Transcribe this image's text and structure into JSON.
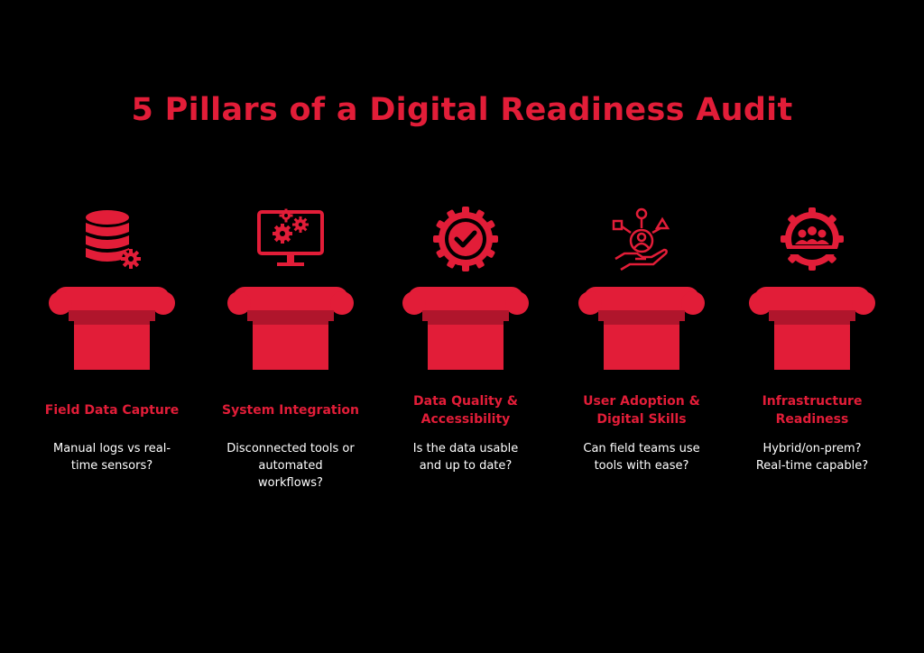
{
  "title": "5 Pillars of a Digital Readiness Audit",
  "accent_color": "#e21d38",
  "pillar_dark_color": "#b0152c",
  "pillars": [
    {
      "icon": "database-gear-icon",
      "label_line1": "Field Data Capture",
      "label_line2": "",
      "desc_line1": "Manual logs vs real-",
      "desc_line2": "time sensors?",
      "desc_line3": ""
    },
    {
      "icon": "monitor-gears-icon",
      "label_line1": "System Integration",
      "label_line2": "",
      "desc_line1": "Disconnected tools or",
      "desc_line2": "automated",
      "desc_line3": "workflows?"
    },
    {
      "icon": "check-badge-icon",
      "label_line1": "Data Quality &",
      "label_line2": "Accessibility",
      "desc_line1": "Is the data usable",
      "desc_line2": "and up to date?",
      "desc_line3": ""
    },
    {
      "icon": "user-hand-network-icon",
      "label_line1": "User Adoption &",
      "label_line2": "Digital Skills",
      "desc_line1": "Can field teams use",
      "desc_line2": "tools with ease?",
      "desc_line3": ""
    },
    {
      "icon": "team-gear-icon",
      "label_line1": "Infrastructure",
      "label_line2": "Readiness",
      "desc_line1": "Hybrid/on-prem?",
      "desc_line2": "Real-time capable?",
      "desc_line3": ""
    }
  ]
}
